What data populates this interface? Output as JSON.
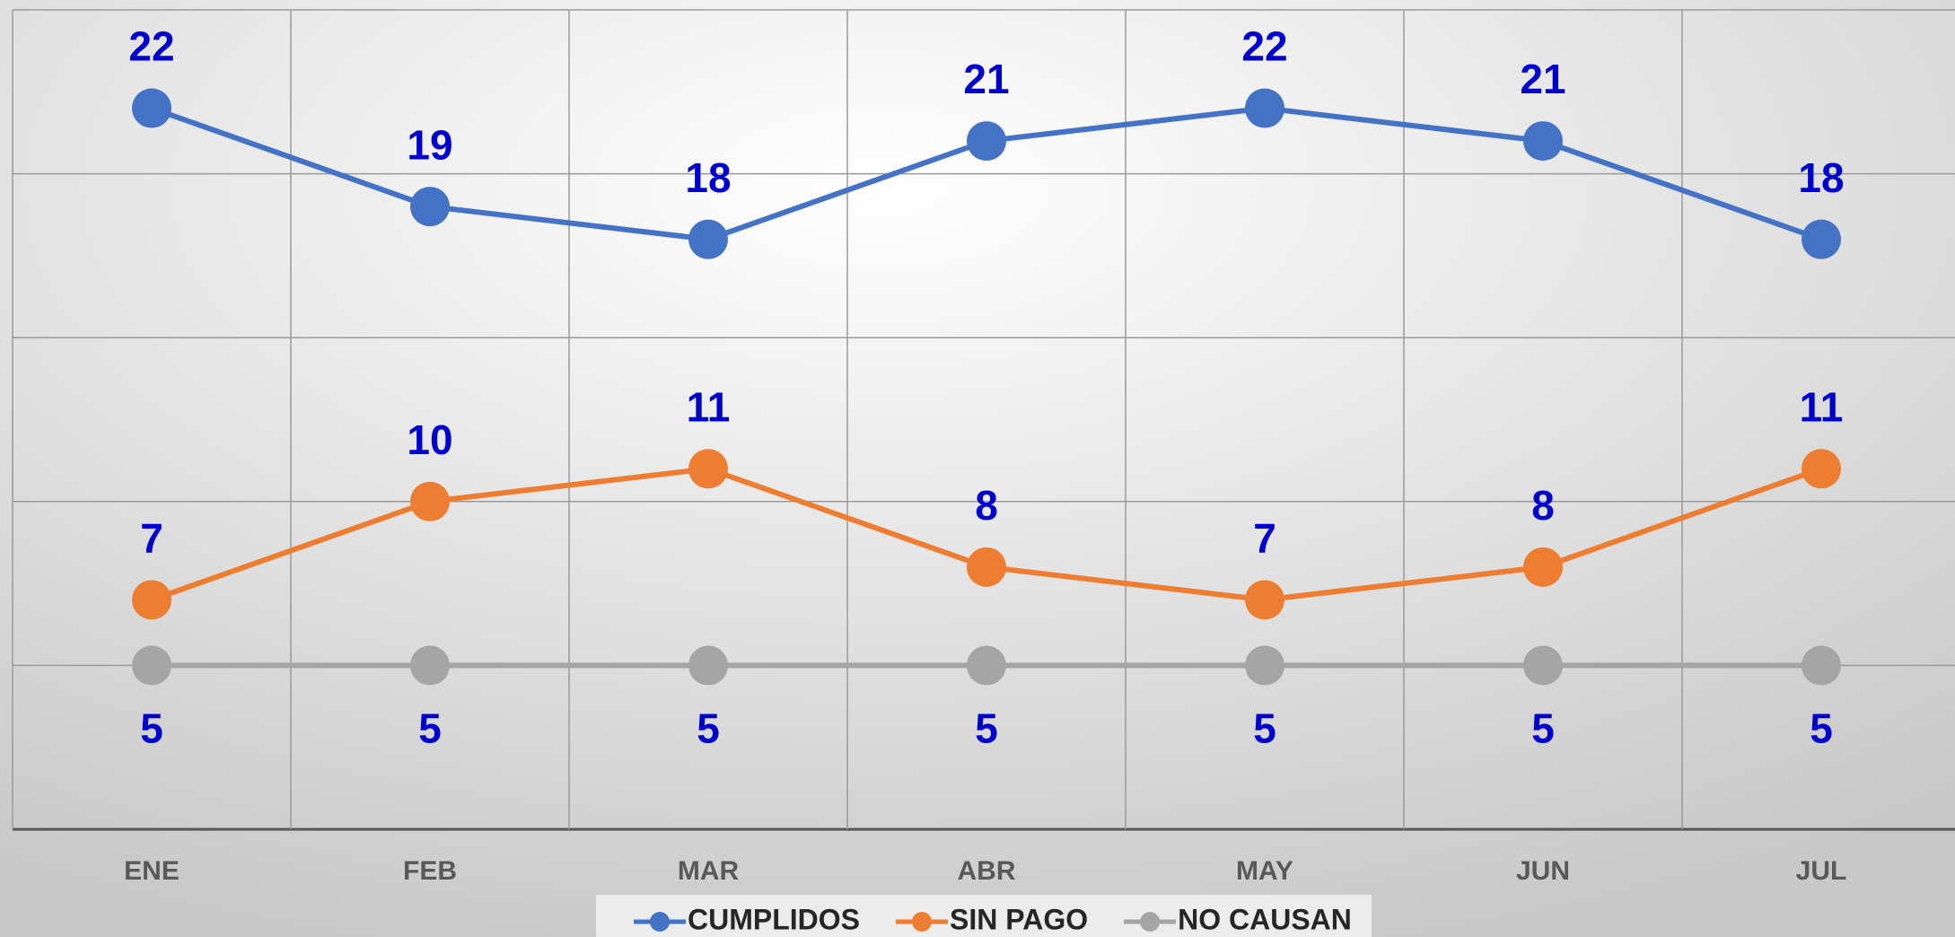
{
  "chart_data": {
    "type": "line",
    "categories": [
      "ENE",
      "FEB",
      "MAR",
      "ABR",
      "MAY",
      "JUN",
      "JUL"
    ],
    "series": [
      {
        "name": "CUMPLIDOS",
        "color": "#4472c4",
        "values": [
          22,
          19,
          18,
          21,
          22,
          21,
          18
        ],
        "label_position": "above"
      },
      {
        "name": "SIN PAGO",
        "color": "#ed7d31",
        "values": [
          7,
          10,
          11,
          8,
          7,
          8,
          11
        ],
        "label_position": "above"
      },
      {
        "name": "NO CAUSAN",
        "color": "#a5a5a5",
        "values": [
          5,
          5,
          5,
          5,
          5,
          5,
          5
        ],
        "label_position": "below"
      }
    ],
    "ylim": [
      0,
      25
    ],
    "yticks": [
      0,
      5,
      10,
      15,
      20,
      25
    ],
    "grid": true,
    "legend": "bottom"
  }
}
